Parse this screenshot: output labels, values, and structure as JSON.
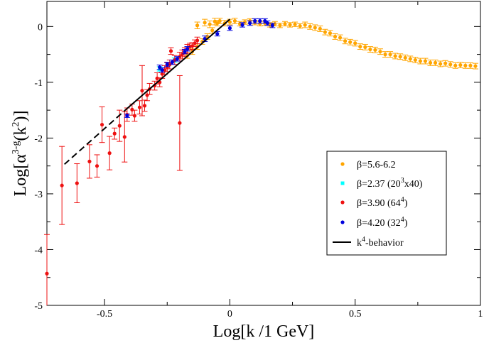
{
  "chart_data": {
    "type": "scatter",
    "xlabel": "Log[k /1 GeV]",
    "ylabel": {
      "main": "Log[α",
      "sup": "3-g",
      "rest": "(k",
      "sup2": "2",
      "end": ")]"
    },
    "xlim": [
      -0.73,
      1.0
    ],
    "ylim": [
      -5.0,
      0.45
    ],
    "x_ticks": [
      -0.5,
      0,
      0.5,
      1
    ],
    "x_tick_labels": [
      "-0.5",
      "0",
      "0.5",
      "1"
    ],
    "y_ticks": [
      -5,
      -4,
      -3,
      -2,
      -1,
      0
    ],
    "y_tick_labels": [
      "-5",
      "-4",
      "-3",
      "-2",
      "-1",
      "0"
    ],
    "grid": false,
    "legend_position": "right",
    "series": [
      {
        "name": "β=5.6-6.2",
        "legend": {
          "main": "β=5.6-6.2"
        },
        "color": "#ffa500",
        "points": [
          [
            -0.17,
            -0.52,
            0.05
          ],
          [
            -0.15,
            -0.45,
            0.05
          ],
          [
            -0.13,
            -0.36,
            0.05
          ],
          [
            -0.11,
            -0.27,
            0.05
          ],
          [
            -0.09,
            -0.18,
            0.05
          ],
          [
            -0.07,
            -0.07,
            0.05
          ],
          [
            -0.05,
            0.06,
            0.05
          ],
          [
            -0.13,
            0.02,
            0.06
          ],
          [
            -0.1,
            0.07,
            0.06
          ],
          [
            -0.08,
            0.04,
            0.06
          ],
          [
            -0.06,
            0.09,
            0.06
          ],
          [
            -0.04,
            0.1,
            0.05
          ],
          [
            -0.02,
            0.06,
            0.05
          ],
          [
            0.0,
            0.08,
            0.05
          ],
          [
            0.02,
            0.1,
            0.05
          ],
          [
            0.04,
            0.05,
            0.04
          ],
          [
            0.06,
            0.08,
            0.04
          ],
          [
            0.08,
            0.1,
            0.04
          ],
          [
            0.1,
            0.07,
            0.04
          ],
          [
            0.12,
            0.05,
            0.04
          ],
          [
            0.14,
            0.06,
            0.04
          ],
          [
            0.16,
            0.03,
            0.04
          ],
          [
            0.18,
            0.05,
            0.04
          ],
          [
            0.2,
            0.02,
            0.04
          ],
          [
            0.22,
            0.05,
            0.04
          ],
          [
            0.24,
            0.03,
            0.04
          ],
          [
            0.26,
            0.04,
            0.04
          ],
          [
            0.28,
            0.01,
            0.04
          ],
          [
            0.3,
            0.03,
            0.05
          ],
          [
            0.32,
            0.0,
            0.05
          ],
          [
            0.34,
            -0.02,
            0.05
          ],
          [
            0.36,
            -0.04,
            0.05
          ],
          [
            0.38,
            -0.1,
            0.05
          ],
          [
            0.4,
            -0.12,
            0.05
          ],
          [
            0.42,
            -0.18,
            0.05
          ],
          [
            0.44,
            -0.2,
            0.05
          ],
          [
            0.46,
            -0.26,
            0.05
          ],
          [
            0.48,
            -0.28,
            0.05
          ],
          [
            0.5,
            -0.3,
            0.05
          ],
          [
            0.52,
            -0.36,
            0.05
          ],
          [
            0.54,
            -0.37,
            0.05
          ],
          [
            0.56,
            -0.41,
            0.05
          ],
          [
            0.58,
            -0.42,
            0.05
          ],
          [
            0.6,
            -0.45,
            0.05
          ],
          [
            0.62,
            -0.5,
            0.05
          ],
          [
            0.64,
            -0.5,
            0.05
          ],
          [
            0.66,
            -0.53,
            0.05
          ],
          [
            0.68,
            -0.54,
            0.05
          ],
          [
            0.7,
            -0.56,
            0.05
          ],
          [
            0.72,
            -0.58,
            0.05
          ],
          [
            0.74,
            -0.6,
            0.05
          ],
          [
            0.76,
            -0.62,
            0.05
          ],
          [
            0.78,
            -0.62,
            0.05
          ],
          [
            0.8,
            -0.65,
            0.05
          ],
          [
            0.82,
            -0.65,
            0.05
          ],
          [
            0.84,
            -0.67,
            0.05
          ],
          [
            0.86,
            -0.66,
            0.05
          ],
          [
            0.88,
            -0.68,
            0.05
          ],
          [
            0.9,
            -0.7,
            0.05
          ],
          [
            0.92,
            -0.69,
            0.05
          ],
          [
            0.94,
            -0.7,
            0.05
          ],
          [
            0.96,
            -0.7,
            0.05
          ],
          [
            0.98,
            -0.71,
            0.05
          ]
        ]
      },
      {
        "name": "β=2.37 (20^3x40)",
        "legend": {
          "main": "β=2.37 (20",
          "sup": "3",
          "rest": "x40)"
        },
        "color": "#00ffff",
        "points": [
          [
            -0.28,
            -0.76,
            0.04
          ],
          [
            -0.22,
            -0.6,
            0.04
          ]
        ]
      },
      {
        "name": "β=3.90 (64^4)",
        "legend": {
          "main": "β=3.90 (64",
          "sup": "4",
          "rest": ")"
        },
        "color": "#ee1111",
        "points": [
          [
            -0.73,
            -4.43,
            0.7
          ],
          [
            -0.67,
            -2.85,
            0.7
          ],
          [
            -0.61,
            -2.81,
            0.35
          ],
          [
            -0.56,
            -2.42,
            0.3
          ],
          [
            -0.53,
            -2.5,
            0.2
          ],
          [
            -0.51,
            -1.76,
            0.32
          ],
          [
            -0.48,
            -2.27,
            0.3
          ],
          [
            -0.46,
            -1.92,
            0.1
          ],
          [
            -0.44,
            -1.78,
            0.28
          ],
          [
            -0.42,
            -1.98,
            0.45
          ],
          [
            -0.41,
            -1.58,
            0.12
          ],
          [
            -0.39,
            -1.49,
            0.1
          ],
          [
            -0.38,
            -1.6,
            0.1
          ],
          [
            -0.36,
            -1.45,
            0.12
          ],
          [
            -0.35,
            -1.15,
            0.45
          ],
          [
            -0.34,
            -1.42,
            0.1
          ],
          [
            -0.33,
            -1.23,
            0.1
          ],
          [
            -0.32,
            -1.12,
            0.1
          ],
          [
            -0.3,
            -1.06,
            0.08
          ],
          [
            -0.29,
            -0.93,
            0.1
          ],
          [
            -0.28,
            -1.0,
            0.08
          ],
          [
            -0.27,
            -0.85,
            0.08
          ],
          [
            -0.26,
            -0.78,
            0.08
          ],
          [
            -0.25,
            -0.73,
            0.08
          ],
          [
            -0.24,
            -0.68,
            0.08
          ],
          [
            -0.235,
            -0.44,
            0.06
          ],
          [
            -0.22,
            -0.6,
            0.08
          ],
          [
            -0.2,
            -1.73,
            0.85
          ],
          [
            -0.2,
            -0.54,
            0.08
          ],
          [
            -0.19,
            -0.5,
            0.08
          ],
          [
            -0.18,
            -0.46,
            0.08
          ],
          [
            -0.17,
            -0.4,
            0.08
          ],
          [
            -0.16,
            -0.36,
            0.06
          ],
          [
            -0.15,
            -0.35,
            0.06
          ],
          [
            -0.14,
            -0.3,
            0.06
          ],
          [
            -0.13,
            -0.25,
            0.06
          ]
        ]
      },
      {
        "name": "β=4.20 (32^4)",
        "legend": {
          "main": "β=4.20 (32",
          "sup": "4",
          "rest": ")"
        },
        "color": "#0000dd",
        "points": [
          [
            -0.41,
            -1.6,
            0.03
          ],
          [
            -0.28,
            -0.73,
            0.04
          ],
          [
            -0.27,
            -0.78,
            0.04
          ],
          [
            -0.25,
            -0.68,
            0.04
          ],
          [
            -0.23,
            -0.64,
            0.04
          ],
          [
            -0.21,
            -0.58,
            0.04
          ],
          [
            -0.18,
            -0.45,
            0.04
          ],
          [
            -0.17,
            -0.4,
            0.04
          ],
          [
            -0.1,
            -0.22,
            0.05
          ],
          [
            -0.05,
            -0.13,
            0.04
          ],
          [
            0.0,
            -0.03,
            0.04
          ],
          [
            0.05,
            0.03,
            0.04
          ],
          [
            0.08,
            0.06,
            0.04
          ],
          [
            0.1,
            0.1,
            0.04
          ],
          [
            0.12,
            0.1,
            0.04
          ],
          [
            0.14,
            0.1,
            0.04
          ],
          [
            0.15,
            0.06,
            0.04
          ],
          [
            0.17,
            0.02,
            0.04
          ]
        ]
      }
    ],
    "reference_line": {
      "name": "k^4-behavior",
      "legend": {
        "main": "k",
        "sup": "4",
        "rest": "-behavior"
      },
      "color": "#000000",
      "dashed_segment": [
        [
          -0.66,
          -2.47
        ],
        [
          -0.41,
          -1.47
        ]
      ],
      "solid_segment": [
        [
          -0.41,
          -1.47
        ],
        [
          0.0,
          0.13
        ]
      ]
    }
  }
}
